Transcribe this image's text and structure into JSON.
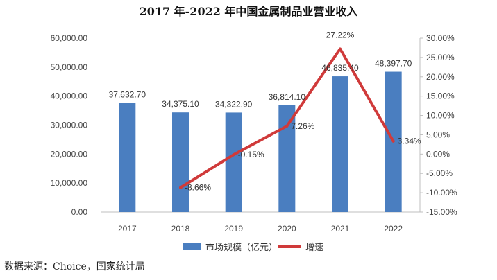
{
  "chart_data": {
    "type": "bar+line",
    "title": "2017 年-2022 年中国金属制品业营业收入",
    "categories": [
      "2017",
      "2018",
      "2019",
      "2020",
      "2021",
      "2022"
    ],
    "series": [
      {
        "name": "市场规模（亿元）",
        "type": "bar",
        "axis": "left",
        "values": [
          37632.7,
          34375.1,
          34322.9,
          36814.1,
          46835.4,
          48397.7
        ],
        "labels": [
          "37,632.70",
          "34,375.10",
          "34,322.90",
          "36,814.10",
          "46,835.40",
          "48,397.70"
        ],
        "color": "#4a7ec0"
      },
      {
        "name": "增速",
        "type": "line",
        "axis": "right",
        "values": [
          null,
          -8.66,
          -0.15,
          7.26,
          27.22,
          3.34
        ],
        "labels": [
          "",
          "-8.66%",
          "-0.15%",
          "7.26%",
          "27.22%",
          "3.34%"
        ],
        "color": "#d03a3a"
      }
    ],
    "y_left": {
      "min": 0,
      "max": 60000,
      "step": 10000,
      "tick_labels": [
        "0.00",
        "10,000.00",
        "20,000.00",
        "30,000.00",
        "40,000.00",
        "50,000.00",
        "60,000.00"
      ]
    },
    "y_right": {
      "min": -15,
      "max": 30,
      "step": 5,
      "tick_labels": [
        "-15.00%",
        "-10.00%",
        "-5.00%",
        "0.00%",
        "5.00%",
        "10.00%",
        "15.00%",
        "20.00%",
        "25.00%",
        "30.00%"
      ]
    },
    "grid": false,
    "legend_position": "bottom"
  },
  "source": "数据来源：Choice，国家统计局"
}
